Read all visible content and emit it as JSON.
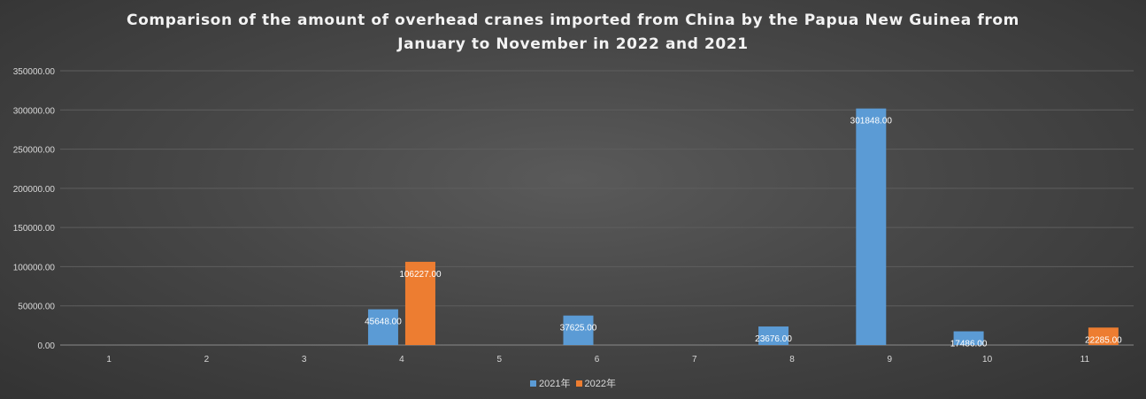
{
  "chart_data": {
    "type": "bar",
    "title_lines": [
      "Comparison of the amount of overhead cranes imported from China by the Papua New Guinea from",
      "January to November in 2022 and 2021"
    ],
    "categories": [
      "1",
      "2",
      "3",
      "4",
      "5",
      "6",
      "7",
      "8",
      "9",
      "10",
      "11"
    ],
    "series": [
      {
        "name": "2021年",
        "color": "#5b9bd5",
        "values": [
          null,
          null,
          null,
          45648.0,
          null,
          37625.0,
          null,
          23676.0,
          301848.0,
          17486.0,
          null
        ],
        "labels": [
          "",
          "",
          "",
          "45648.00",
          "",
          "37625.00",
          "",
          "23676.00",
          "301848.00",
          "17486.00",
          ""
        ]
      },
      {
        "name": "2022年",
        "color": "#ed7d31",
        "values": [
          null,
          null,
          null,
          106227.0,
          null,
          null,
          null,
          null,
          null,
          null,
          22285.0
        ],
        "labels": [
          "",
          "",
          "",
          "106227.00",
          "",
          "",
          "",
          "",
          "",
          "",
          "22285.00"
        ]
      }
    ],
    "ylim": [
      0,
      350000
    ],
    "yticks": [
      "0.00",
      "50000.00",
      "100000.00",
      "150000.00",
      "200000.00",
      "250000.00",
      "300000.00",
      "350000.00"
    ],
    "grid": true,
    "legend_position": "bottom"
  }
}
